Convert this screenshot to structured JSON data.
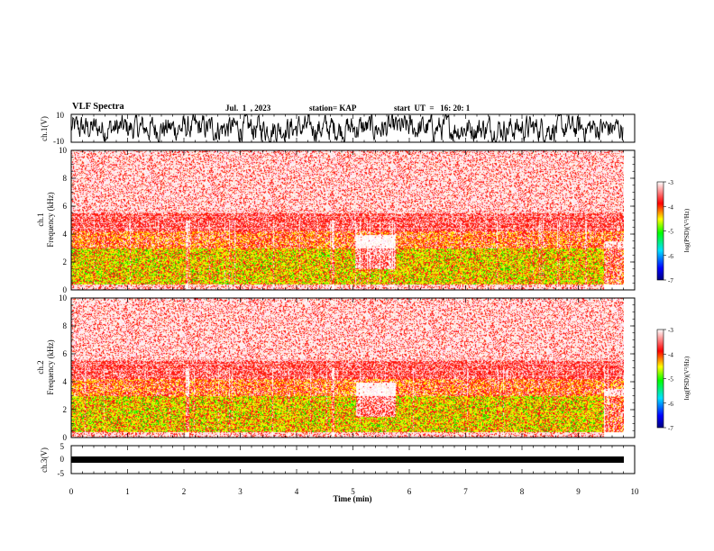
{
  "header": {
    "title": "VLF Spectra",
    "date": "Jul.  1  , 2023",
    "station": "station= KAP",
    "start": "start  UT  =   16: 20: 1"
  },
  "chart_data": [
    {
      "type": "line",
      "name": "ch1-waveform",
      "ylabel": "ch.1(V)",
      "ylim": [
        -10,
        10
      ],
      "yticks": [
        "10",
        "-10"
      ],
      "xlim": [
        0,
        10
      ]
    },
    {
      "type": "heatmap",
      "name": "ch1-spectrogram",
      "ylabel_top": "ch.1",
      "ylabel": "Frequency  (kHz)",
      "ylim": [
        0,
        10
      ],
      "yticks": [
        "0",
        "2",
        "4",
        "6",
        "8",
        "10"
      ],
      "xlim": [
        0,
        10
      ],
      "colorbar": {
        "label": "log(PSD)(V²/Hz)",
        "ticks": [
          "-3",
          "-4",
          "-5",
          "-6",
          "-7"
        ],
        "range": [
          -7,
          -3
        ]
      },
      "data_extent_min": 9.8
    },
    {
      "type": "heatmap",
      "name": "ch2-spectrogram",
      "ylabel_top": "ch.2",
      "ylabel": "Frequency  (kHz)",
      "ylim": [
        0,
        10
      ],
      "yticks": [
        "0",
        "2",
        "4",
        "6",
        "8",
        "10"
      ],
      "xlim": [
        0,
        10
      ],
      "colorbar": {
        "label": "log(PSD)(V²/Hz)",
        "ticks": [
          "-3",
          "-4",
          "-5",
          "-6",
          "-7"
        ],
        "range": [
          -7,
          -3
        ]
      },
      "data_extent_min": 9.8
    },
    {
      "type": "line",
      "name": "ch3-waveform",
      "ylabel": "ch.3(V)",
      "ylim": [
        -5,
        5
      ],
      "yticks": [
        "5",
        "0",
        "-5"
      ],
      "xlim": [
        0,
        10
      ],
      "xlabel": "Time  (min)",
      "xticks": [
        "0",
        "1",
        "2",
        "3",
        "4",
        "5",
        "6",
        "7",
        "8",
        "9",
        "10"
      ]
    }
  ],
  "colors": {
    "high": "#ff0000",
    "mid": "#ffff00",
    "low": "#00ff00",
    "min": "#0000aa"
  }
}
